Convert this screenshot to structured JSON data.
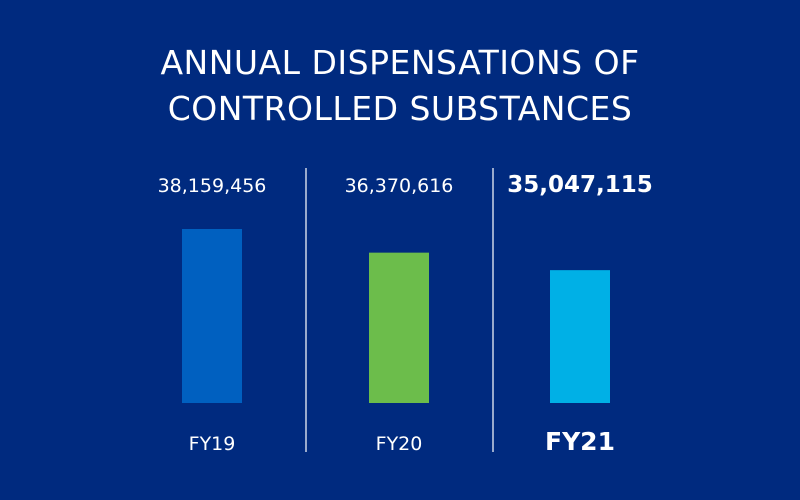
{
  "chart_data": {
    "type": "bar",
    "title_lines": [
      "ANNUAL DISPENSATIONS OF",
      "CONTROLLED SUBSTANCES"
    ],
    "categories": [
      "FY19",
      "FY20",
      "FY21"
    ],
    "values": [
      38159456,
      36370616,
      35047115
    ],
    "value_labels": [
      "38,159,456",
      "36,370,616",
      "35,047,115"
    ],
    "emphasized_index": 2,
    "colors": [
      "#0060c0",
      "#6cbd4b",
      "#00b0e6"
    ],
    "background": "#002a7f",
    "grid": false,
    "legend": "none"
  }
}
